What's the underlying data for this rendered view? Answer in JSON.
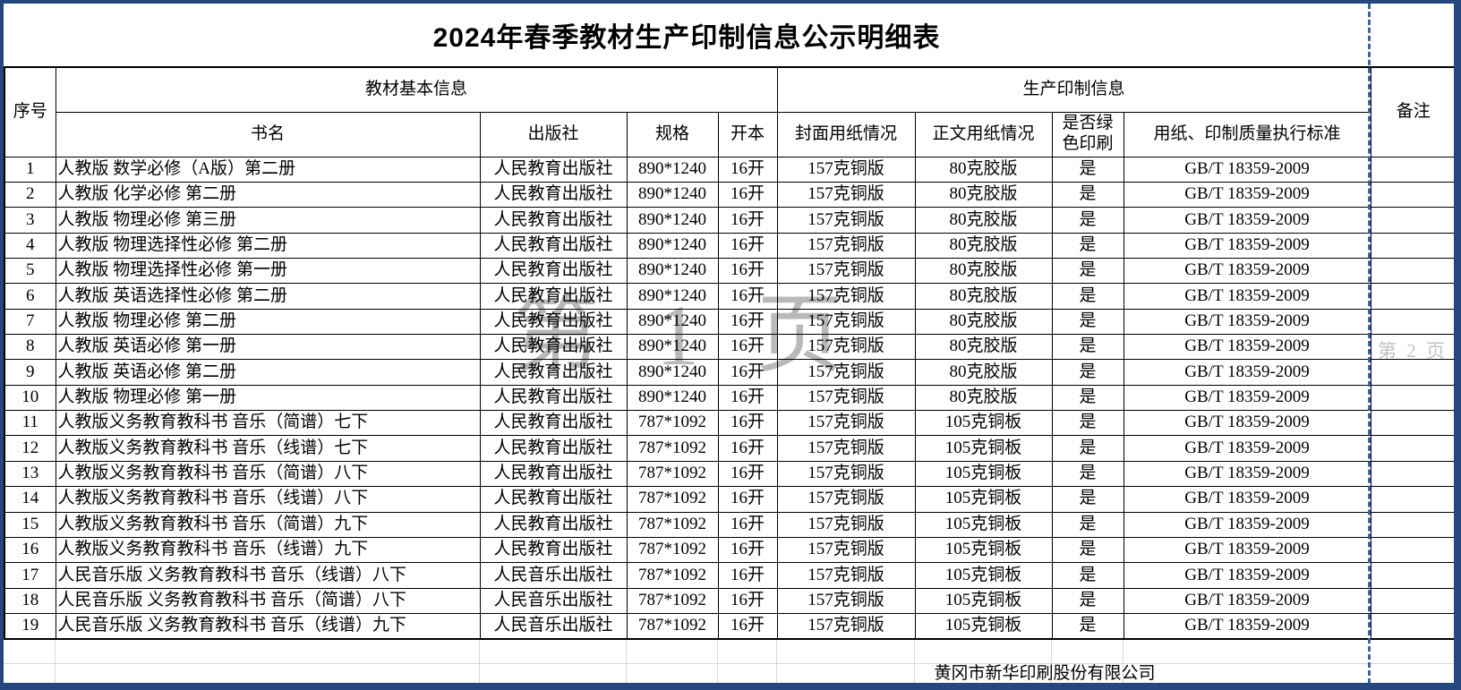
{
  "title": "2024年春季教材生产印制信息公示明细表",
  "watermarks": {
    "page1": "第 1 页",
    "page2": "第 2 页"
  },
  "table": {
    "group_headers": {
      "seq": "序号",
      "basic_info": "教材基本信息",
      "production_info": "生产印制信息",
      "remark": "备注"
    },
    "sub_headers": [
      "书名",
      "出版社",
      "规格",
      "开本",
      "封面用纸情况",
      "正文用纸情况",
      "是否绿色印刷",
      "用纸、印制质量执行标准"
    ],
    "rows": [
      [
        "1",
        "人教版 数学必修（A版）第二册",
        "人民教育出版社",
        "890*1240",
        "16开",
        "157克铜版",
        "80克胶版",
        "是",
        "GB/T 18359-2009",
        ""
      ],
      [
        "2",
        "人教版 化学必修 第二册",
        "人民教育出版社",
        "890*1240",
        "16开",
        "157克铜版",
        "80克胶版",
        "是",
        "GB/T 18359-2009",
        ""
      ],
      [
        "3",
        "人教版 物理必修 第三册",
        "人民教育出版社",
        "890*1240",
        "16开",
        "157克铜版",
        "80克胶版",
        "是",
        "GB/T 18359-2009",
        ""
      ],
      [
        "4",
        "人教版 物理选择性必修 第二册",
        "人民教育出版社",
        "890*1240",
        "16开",
        "157克铜版",
        "80克胶版",
        "是",
        "GB/T 18359-2009",
        ""
      ],
      [
        "5",
        "人教版 物理选择性必修 第一册",
        "人民教育出版社",
        "890*1240",
        "16开",
        "157克铜版",
        "80克胶版",
        "是",
        "GB/T 18359-2009",
        ""
      ],
      [
        "6",
        "人教版 英语选择性必修 第二册",
        "人民教育出版社",
        "890*1240",
        "16开",
        "157克铜版",
        "80克胶版",
        "是",
        "GB/T 18359-2009",
        ""
      ],
      [
        "7",
        "人教版 物理必修 第二册",
        "人民教育出版社",
        "890*1240",
        "16开",
        "157克铜版",
        "80克胶版",
        "是",
        "GB/T 18359-2009",
        ""
      ],
      [
        "8",
        "人教版 英语必修 第一册",
        "人民教育出版社",
        "890*1240",
        "16开",
        "157克铜版",
        "80克胶版",
        "是",
        "GB/T 18359-2009",
        ""
      ],
      [
        "9",
        "人教版 英语必修 第二册",
        "人民教育出版社",
        "890*1240",
        "16开",
        "157克铜版",
        "80克胶版",
        "是",
        "GB/T 18359-2009",
        ""
      ],
      [
        "10",
        "人教版 物理必修 第一册",
        "人民教育出版社",
        "890*1240",
        "16开",
        "157克铜版",
        "80克胶版",
        "是",
        "GB/T 18359-2009",
        ""
      ],
      [
        "11",
        "人教版义务教育教科书 音乐（简谱）七下",
        "人民教育出版社",
        "787*1092",
        "16开",
        "157克铜版",
        "105克铜板",
        "是",
        "GB/T 18359-2009",
        ""
      ],
      [
        "12",
        "人教版义务教育教科书 音乐（线谱）七下",
        "人民教育出版社",
        "787*1092",
        "16开",
        "157克铜版",
        "105克铜板",
        "是",
        "GB/T 18359-2009",
        ""
      ],
      [
        "13",
        "人教版义务教育教科书 音乐（简谱）八下",
        "人民教育出版社",
        "787*1092",
        "16开",
        "157克铜版",
        "105克铜板",
        "是",
        "GB/T 18359-2009",
        ""
      ],
      [
        "14",
        "人教版义务教育教科书 音乐（线谱）八下",
        "人民教育出版社",
        "787*1092",
        "16开",
        "157克铜版",
        "105克铜板",
        "是",
        "GB/T 18359-2009",
        ""
      ],
      [
        "15",
        "人教版义务教育教科书 音乐（简谱）九下",
        "人民教育出版社",
        "787*1092",
        "16开",
        "157克铜版",
        "105克铜板",
        "是",
        "GB/T 18359-2009",
        ""
      ],
      [
        "16",
        "人教版义务教育教科书 音乐（线谱）九下",
        "人民教育出版社",
        "787*1092",
        "16开",
        "157克铜版",
        "105克铜板",
        "是",
        "GB/T 18359-2009",
        ""
      ],
      [
        "17",
        "人民音乐版 义务教育教科书 音乐（线谱）八下",
        "人民音乐出版社",
        "787*1092",
        "16开",
        "157克铜版",
        "105克铜板",
        "是",
        "GB/T 18359-2009",
        ""
      ],
      [
        "18",
        "人民音乐版 义务教育教科书 音乐（简谱）八下",
        "人民音乐出版社",
        "787*1092",
        "16开",
        "157克铜版",
        "105克铜板",
        "是",
        "GB/T 18359-2009",
        ""
      ],
      [
        "19",
        "人民音乐版 义务教育教科书 音乐（线谱）九下",
        "人民音乐出版社",
        "787*1092",
        "16开",
        "157克铜版",
        "105克铜板",
        "是",
        "GB/T 18359-2009",
        ""
      ]
    ]
  },
  "footer": {
    "company": "黄冈市新华印刷股份有限公司"
  },
  "colors": {
    "page_border": "#24477f",
    "page_break_dashed": "#3465a4",
    "watermark": "#b9b9b9",
    "light_grid": "#d9d9d9",
    "table_border": "#000000"
  }
}
